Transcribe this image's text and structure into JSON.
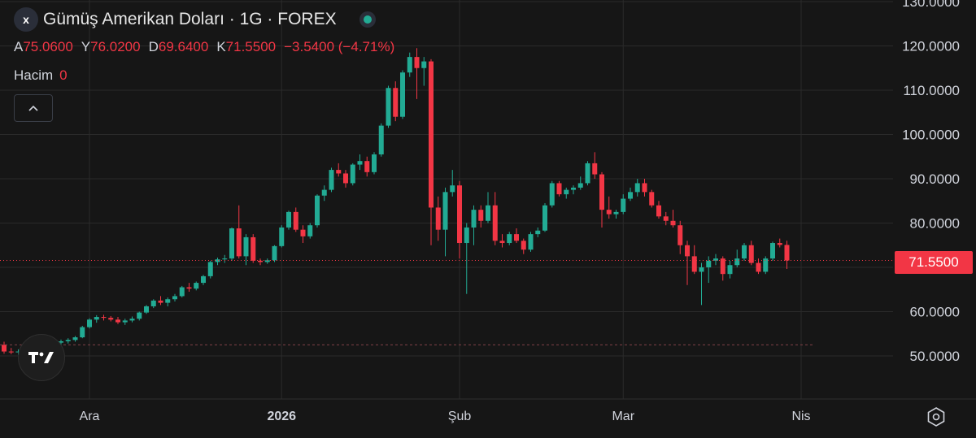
{
  "header": {
    "symbol_icon": "x",
    "title": "Gümüş Amerikan Doları · 1G · FOREX",
    "status_icon": "market-status-dot-icon"
  },
  "ohlc": {
    "open_label": "A",
    "open": "75.0600",
    "high_label": "Y",
    "high": "76.0200",
    "low_label": "D",
    "low": "69.6400",
    "close_label": "K",
    "close": "71.5500",
    "change": "−3.5400 (−4.71%)"
  },
  "volume": {
    "label": "Hacim",
    "value": "0"
  },
  "collapse_icon": "chevron-up-icon",
  "logo_text": "TV",
  "price_badge": "71.5500",
  "settings_icon": "settings-icon",
  "colors": {
    "up": "#22ab94",
    "down": "#f23645",
    "background": "#161616",
    "grid": "#2a2a2a"
  },
  "chart_data": {
    "type": "candlestick",
    "y_axis": {
      "min": 44,
      "max": 130,
      "ticks": [
        50,
        60,
        70,
        80,
        90,
        100,
        110,
        120,
        130
      ],
      "tick_labels": [
        "50.0000",
        "60.0000",
        "70.0000",
        "80.0000",
        "90.0000",
        "100.0000",
        "110.0000",
        "120.0000",
        "130.0000"
      ]
    },
    "x_axis": {
      "labels": [
        "Ara",
        "2026",
        "Şub",
        "Mar",
        "Nis"
      ],
      "label_indices": [
        12,
        39,
        64,
        87,
        112
      ]
    },
    "last_price": 71.55,
    "reference_line": 52.5,
    "candles": [
      [
        52.5,
        53.2,
        50.5,
        51.0
      ],
      [
        51.0,
        51.8,
        50.4,
        50.8
      ],
      [
        50.8,
        51.5,
        50.2,
        51.0
      ],
      [
        51.0,
        52.0,
        50.6,
        51.6
      ],
      [
        51.6,
        52.3,
        51.0,
        51.8
      ],
      [
        51.8,
        52.5,
        51.4,
        52.2
      ],
      [
        52.2,
        52.8,
        51.8,
        52.5
      ],
      [
        52.5,
        53.4,
        52.0,
        53.0
      ],
      [
        53.0,
        53.7,
        52.6,
        53.3
      ],
      [
        53.3,
        54.0,
        52.8,
        53.6
      ],
      [
        53.6,
        54.5,
        53.2,
        54.2
      ],
      [
        54.2,
        56.8,
        54.0,
        56.5
      ],
      [
        56.5,
        58.5,
        56.2,
        58.2
      ],
      [
        58.2,
        59.2,
        57.5,
        58.8
      ],
      [
        58.8,
        59.3,
        58.0,
        58.6
      ],
      [
        58.6,
        59.0,
        57.8,
        58.2
      ],
      [
        58.2,
        58.8,
        57.2,
        57.6
      ],
      [
        57.6,
        58.4,
        57.0,
        58.0
      ],
      [
        58.0,
        58.9,
        57.6,
        58.4
      ],
      [
        58.4,
        60.0,
        58.0,
        59.8
      ],
      [
        59.8,
        61.5,
        59.5,
        61.2
      ],
      [
        61.2,
        62.8,
        60.8,
        62.5
      ],
      [
        62.5,
        63.5,
        61.5,
        62.0
      ],
      [
        62.0,
        63.2,
        61.2,
        62.8
      ],
      [
        62.8,
        64.0,
        62.3,
        63.5
      ],
      [
        63.5,
        65.8,
        63.2,
        65.5
      ],
      [
        65.5,
        66.5,
        64.5,
        65.2
      ],
      [
        65.2,
        66.8,
        64.8,
        66.5
      ],
      [
        66.5,
        68.3,
        66.0,
        68.0
      ],
      [
        68.0,
        71.5,
        67.5,
        71.2
      ],
      [
        71.2,
        72.2,
        70.5,
        71.8
      ],
      [
        71.8,
        72.8,
        71.0,
        72.0
      ],
      [
        72.0,
        79.0,
        71.5,
        78.8
      ],
      [
        78.8,
        84.0,
        72.0,
        72.5
      ],
      [
        72.5,
        77.5,
        70.5,
        76.8
      ],
      [
        76.8,
        77.5,
        71.0,
        71.5
      ],
      [
        71.5,
        72.0,
        70.5,
        71.2
      ],
      [
        71.2,
        72.0,
        70.8,
        71.6
      ],
      [
        71.6,
        75.0,
        71.2,
        74.8
      ],
      [
        74.8,
        79.5,
        74.5,
        79.0
      ],
      [
        79.0,
        82.8,
        78.5,
        82.5
      ],
      [
        82.5,
        83.5,
        78.0,
        78.5
      ],
      [
        78.5,
        79.5,
        75.5,
        77.0
      ],
      [
        77.0,
        80.0,
        76.5,
        79.5
      ],
      [
        79.5,
        86.5,
        79.0,
        86.2
      ],
      [
        86.2,
        88.5,
        85.0,
        87.5
      ],
      [
        87.5,
        92.5,
        87.0,
        92.0
      ],
      [
        92.0,
        93.5,
        90.5,
        91.2
      ],
      [
        91.2,
        92.0,
        88.0,
        89.0
      ],
      [
        89.0,
        93.5,
        88.5,
        93.2
      ],
      [
        93.2,
        95.5,
        92.0,
        94.0
      ],
      [
        94.0,
        95.0,
        90.5,
        91.5
      ],
      [
        91.5,
        96.0,
        91.0,
        95.5
      ],
      [
        95.5,
        102.5,
        95.0,
        102.0
      ],
      [
        102.0,
        111.0,
        101.5,
        110.5
      ],
      [
        110.5,
        112.0,
        103.0,
        104.0
      ],
      [
        104.0,
        114.5,
        103.5,
        114.0
      ],
      [
        114.0,
        118.5,
        113.0,
        117.5
      ],
      [
        117.5,
        119.5,
        108.0,
        115.0
      ],
      [
        115.0,
        117.5,
        111.0,
        116.5
      ],
      [
        116.5,
        117.0,
        75.0,
        83.5
      ],
      [
        83.5,
        86.0,
        76.0,
        78.5
      ],
      [
        78.5,
        88.0,
        72.5,
        87.0
      ],
      [
        87.0,
        92.0,
        86.0,
        88.5
      ],
      [
        88.5,
        89.5,
        72.0,
        75.5
      ],
      [
        75.5,
        80.0,
        64.0,
        79.0
      ],
      [
        79.0,
        84.0,
        75.0,
        83.0
      ],
      [
        83.0,
        84.0,
        79.0,
        80.5
      ],
      [
        80.5,
        87.0,
        80.0,
        84.0
      ],
      [
        84.0,
        87.0,
        75.0,
        76.0
      ],
      [
        76.0,
        77.5,
        74.5,
        75.5
      ],
      [
        75.5,
        78.0,
        75.0,
        77.5
      ],
      [
        77.5,
        78.8,
        75.5,
        76.0
      ],
      [
        76.0,
        76.5,
        73.0,
        74.0
      ],
      [
        74.0,
        78.0,
        73.5,
        77.5
      ],
      [
        77.5,
        79.0,
        76.8,
        78.3
      ],
      [
        78.3,
        84.5,
        78.0,
        84.0
      ],
      [
        84.0,
        89.5,
        83.5,
        89.0
      ],
      [
        89.0,
        89.5,
        86.0,
        86.5
      ],
      [
        86.5,
        88.0,
        85.5,
        87.5
      ],
      [
        87.5,
        88.5,
        86.5,
        88.0
      ],
      [
        88.0,
        90.5,
        87.5,
        89.0
      ],
      [
        89.0,
        94.0,
        88.5,
        93.5
      ],
      [
        93.5,
        96.0,
        90.0,
        91.0
      ],
      [
        91.0,
        91.5,
        79.0,
        83.0
      ],
      [
        83.0,
        86.0,
        81.0,
        82.0
      ],
      [
        82.0,
        83.0,
        81.0,
        82.5
      ],
      [
        82.5,
        86.5,
        82.0,
        85.5
      ],
      [
        85.5,
        88.0,
        85.0,
        87.0
      ],
      [
        87.0,
        90.0,
        86.0,
        89.0
      ],
      [
        89.0,
        90.0,
        86.0,
        87.0
      ],
      [
        87.0,
        87.5,
        83.5,
        84.0
      ],
      [
        84.0,
        85.0,
        81.0,
        81.5
      ],
      [
        81.5,
        82.5,
        79.5,
        80.5
      ],
      [
        80.5,
        83.0,
        79.0,
        79.5
      ],
      [
        79.5,
        80.5,
        73.0,
        75.0
      ],
      [
        75.0,
        76.0,
        66.0,
        72.5
      ],
      [
        72.5,
        75.0,
        68.5,
        69.0
      ],
      [
        69.0,
        71.0,
        61.5,
        70.0
      ],
      [
        70.0,
        72.5,
        66.5,
        71.5
      ],
      [
        71.5,
        73.0,
        70.5,
        72.0
      ],
      [
        72.0,
        72.5,
        67.0,
        68.5
      ],
      [
        68.5,
        71.5,
        67.5,
        70.5
      ],
      [
        70.5,
        74.0,
        70.0,
        72.0
      ],
      [
        72.0,
        75.5,
        71.5,
        75.0
      ],
      [
        75.0,
        76.0,
        70.5,
        71.0
      ],
      [
        71.0,
        72.0,
        68.5,
        69.0
      ],
      [
        69.0,
        72.5,
        68.5,
        72.0
      ],
      [
        72.0,
        75.8,
        71.5,
        75.5
      ],
      [
        75.5,
        76.5,
        74.5,
        75.06
      ],
      [
        75.06,
        76.02,
        69.64,
        71.55
      ]
    ]
  }
}
